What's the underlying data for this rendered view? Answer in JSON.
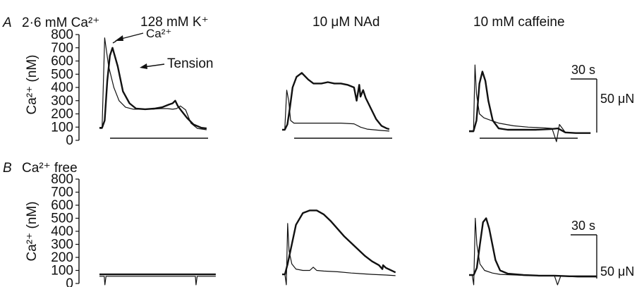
{
  "rows": [
    {
      "letter": "A",
      "condition": "2·6 mM Ca²⁺",
      "ylabel": "Ca²⁺ (nM)",
      "yticks": [
        "800",
        "700",
        "600",
        "500",
        "400",
        "300",
        "200",
        "100",
        "0"
      ]
    },
    {
      "letter": "B",
      "condition": "Ca²⁺ free",
      "ylabel": "Ca²⁺ (nM)",
      "yticks": [
        "800",
        "700",
        "600",
        "500",
        "400",
        "300",
        "200",
        "100",
        "0"
      ]
    }
  ],
  "stimuli": [
    "128 mM K⁺",
    "10 μM NAd",
    "10 mM caffeine"
  ],
  "annotations": {
    "ca": "Ca²⁺",
    "tension": "Tension"
  },
  "scalebar": {
    "time": "30 s",
    "force": "50 μN"
  },
  "colors": {
    "ink": "#111111",
    "background": "#ffffff"
  },
  "chart_data": {
    "type": "line",
    "x_unit": "s",
    "y_unit": "nM",
    "ylim": [
      0,
      800
    ],
    "panels": [
      {
        "row": "A",
        "stimulus": "128 mM K⁺",
        "series": [
          {
            "name": "Ca²⁺",
            "x": [
              0,
              4,
              8,
              14,
              22,
              30,
              40,
              52,
              66,
              80,
              94,
              104,
              112,
              118,
              124,
              132,
              140,
              150,
              164
            ],
            "y": [
              90,
              90,
              775,
              560,
              400,
              300,
              250,
              235,
              235,
              235,
              240,
              240,
              235,
              240,
              260,
              230,
              130,
              90,
              80
            ]
          },
          {
            "name": "Tension",
            "x": [
              0,
              4,
              8,
              12,
              16,
              20,
              28,
              36,
              46,
              56,
              70,
              84,
              96,
              106,
              112,
              116,
              120,
              126,
              134,
              144,
              156,
              164
            ],
            "y": [
              95,
              95,
              150,
              450,
              640,
              700,
              560,
              370,
              280,
              240,
              235,
              240,
              250,
              270,
              280,
              300,
              260,
              220,
              170,
              120,
              95,
              90
            ]
          }
        ]
      },
      {
        "row": "A",
        "stimulus": "10 μM NAd",
        "series": [
          {
            "x": [
              0,
              4,
              7,
              10,
              13,
              18,
              30,
              50,
              70,
              90,
              110,
              120,
              130,
              140,
              150,
              164
            ],
            "y": [
              80,
              80,
              380,
              300,
              150,
              130,
              130,
              130,
              130,
              130,
              125,
              100,
              85,
              80,
              75,
              70
            ]
          },
          {
            "x": [
              0,
              4,
              8,
              12,
              16,
              22,
              30,
              40,
              48,
              60,
              70,
              80,
              90,
              100,
              110,
              114,
              118,
              120,
              124,
              128,
              136,
              144,
              152,
              160,
              164
            ],
            "y": [
              80,
              80,
              120,
              250,
              400,
              480,
              510,
              460,
              430,
              430,
              440,
              430,
              430,
              420,
              400,
              300,
              420,
              330,
              380,
              320,
              240,
              160,
              110,
              90,
              85
            ]
          }
        ]
      },
      {
        "row": "A",
        "stimulus": "10 mM caffeine",
        "series": [
          {
            "x": [
              0,
              6,
              8,
              10,
              14,
              20,
              30,
              40,
              60,
              80,
              100,
              112,
              118,
              122,
              126,
              130,
              144,
              164
            ],
            "y": [
              65,
              65,
              570,
              350,
              200,
              170,
              150,
              130,
              110,
              100,
              95,
              90,
              -10,
              120,
              90,
              60,
              55,
              55
            ]
          },
          {
            "x": [
              0,
              6,
              10,
              14,
              18,
              22,
              26,
              32,
              40,
              52,
              70,
              90,
              110,
              120,
              130,
              144,
              164
            ],
            "y": [
              70,
              70,
              150,
              430,
              520,
              450,
              300,
              150,
              90,
              80,
              80,
              80,
              85,
              90,
              60,
              55,
              55
            ]
          }
        ]
      },
      {
        "row": "B",
        "stimulus": "128 mM K⁺",
        "series": [
          {
            "x": [
              0,
              6,
              8,
              9,
              11,
              20,
              50,
              100,
              150,
              158,
              160,
              161,
              163,
              180,
              194
            ],
            "y": [
              55,
              55,
              55,
              -10,
              55,
              55,
              55,
              55,
              55,
              55,
              55,
              -10,
              55,
              55,
              55
            ]
          },
          {
            "x": [
              0,
              20,
              60,
              100,
              140,
              170,
              194
            ],
            "y": [
              70,
              70,
              70,
              70,
              70,
              70,
              70
            ]
          }
        ]
      },
      {
        "row": "B",
        "stimulus": "10 μM NAd",
        "series": [
          {
            "x": [
              0,
              4,
              6,
              8,
              10,
              14,
              20,
              30,
              40,
              45,
              50,
              60,
              80,
              100,
              130,
              150,
              164
            ],
            "y": [
              70,
              70,
              -10,
              460,
              250,
              150,
              110,
              100,
              100,
              125,
              100,
              95,
              90,
              80,
              70,
              65,
              60
            ]
          },
          {
            "x": [
              0,
              4,
              8,
              14,
              20,
              30,
              40,
              50,
              60,
              70,
              80,
              90,
              100,
              110,
              120,
              130,
              140,
              145,
              146,
              150,
              160,
              164
            ],
            "y": [
              70,
              70,
              150,
              300,
              450,
              540,
              560,
              560,
              530,
              480,
              420,
              360,
              310,
              260,
              210,
              170,
              140,
              110,
              140,
              120,
              95,
              85
            ]
          }
        ]
      },
      {
        "row": "B",
        "stimulus": "10 mM caffeine",
        "series": [
          {
            "x": [
              0,
              4,
              6,
              8,
              10,
              14,
              20,
              30,
              40,
              60,
              80,
              100,
              110,
              114,
              118,
              122,
              140,
              164
            ],
            "y": [
              65,
              65,
              -10,
              500,
              300,
              150,
              100,
              80,
              70,
              65,
              60,
              60,
              60,
              -10,
              55,
              55,
              50,
              50
            ]
          },
          {
            "x": [
              0,
              6,
              10,
              14,
              18,
              22,
              26,
              30,
              34,
              40,
              50,
              70,
              90,
              110,
              130,
              150,
              164
            ],
            "y": [
              65,
              65,
              120,
              300,
              470,
              500,
              420,
              300,
              180,
              100,
              75,
              65,
              60,
              60,
              55,
              55,
              55
            ]
          }
        ]
      }
    ]
  }
}
